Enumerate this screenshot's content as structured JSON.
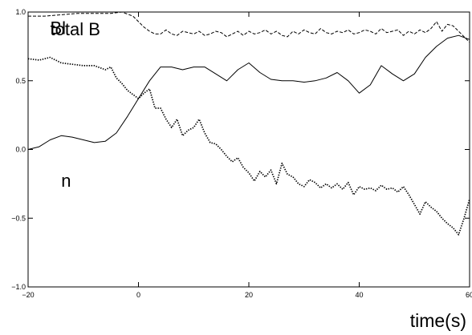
{
  "chart_data": {
    "type": "line",
    "xlabel": "time(s)",
    "ylabel": "",
    "xlim": [
      -20,
      60
    ],
    "ylim": [
      -1.0,
      1.0
    ],
    "x_ticks": [
      -20,
      0,
      20,
      40,
      60
    ],
    "y_ticks": [
      -1.0,
      -0.5,
      0.0,
      0.5,
      1.0
    ],
    "x_tick_labels": [
      "−20",
      "0",
      "20",
      "40",
      "60"
    ],
    "y_tick_labels": [
      "−1.0",
      "−0.5",
      "0.0",
      "0.5",
      "1.0"
    ],
    "grid": false,
    "series": [
      {
        "name": "total B",
        "style": "dashed",
        "color": "#000000",
        "x": [
          -20,
          -17,
          -14,
          -11,
          -9,
          -7,
          -5,
          -3,
          -1,
          0,
          1,
          2,
          3,
          4,
          5,
          6,
          7,
          8,
          9,
          10,
          11,
          12,
          13,
          14,
          15,
          16,
          17,
          18,
          19,
          20,
          21,
          22,
          23,
          24,
          25,
          26,
          27,
          28,
          29,
          30,
          31,
          32,
          33,
          34,
          35,
          36,
          37,
          38,
          39,
          40,
          41,
          42,
          43,
          44,
          45,
          46,
          47,
          48,
          49,
          50,
          51,
          52,
          53,
          54,
          55,
          56,
          57,
          58,
          59,
          60
        ],
        "values": [
          0.97,
          0.97,
          0.98,
          0.99,
          0.99,
          0.99,
          0.99,
          1.0,
          0.97,
          0.93,
          0.89,
          0.86,
          0.84,
          0.84,
          0.87,
          0.84,
          0.83,
          0.86,
          0.85,
          0.84,
          0.86,
          0.83,
          0.84,
          0.86,
          0.85,
          0.82,
          0.84,
          0.86,
          0.83,
          0.86,
          0.84,
          0.85,
          0.87,
          0.84,
          0.86,
          0.83,
          0.82,
          0.86,
          0.84,
          0.87,
          0.85,
          0.84,
          0.88,
          0.85,
          0.84,
          0.86,
          0.85,
          0.87,
          0.84,
          0.85,
          0.87,
          0.86,
          0.84,
          0.88,
          0.85,
          0.86,
          0.87,
          0.83,
          0.86,
          0.84,
          0.87,
          0.85,
          0.88,
          0.93,
          0.86,
          0.91,
          0.9,
          0.86,
          0.82,
          0.78
        ]
      },
      {
        "name": "Bl",
        "style": "solid",
        "color": "#000000",
        "x": [
          -20,
          -18,
          -16,
          -14,
          -12,
          -10,
          -8,
          -6,
          -4,
          -2,
          0,
          2,
          4,
          6,
          8,
          10,
          12,
          14,
          16,
          18,
          20,
          22,
          24,
          26,
          28,
          30,
          32,
          34,
          36,
          38,
          40,
          42,
          44,
          46,
          48,
          50,
          52,
          54,
          56,
          58,
          60
        ],
        "values": [
          0.0,
          0.02,
          0.07,
          0.1,
          0.09,
          0.07,
          0.05,
          0.06,
          0.12,
          0.24,
          0.37,
          0.5,
          0.6,
          0.6,
          0.58,
          0.6,
          0.6,
          0.55,
          0.5,
          0.58,
          0.63,
          0.56,
          0.51,
          0.5,
          0.5,
          0.49,
          0.5,
          0.52,
          0.56,
          0.5,
          0.41,
          0.47,
          0.61,
          0.55,
          0.5,
          0.55,
          0.67,
          0.75,
          0.81,
          0.83,
          0.8
        ]
      },
      {
        "name": "n",
        "style": "dotted",
        "color": "#000000",
        "x": [
          -20,
          -18,
          -16,
          -14,
          -12,
          -10,
          -8,
          -6,
          -5,
          -4,
          -3,
          -2,
          -1,
          0,
          1,
          2,
          3,
          4,
          5,
          6,
          7,
          8,
          9,
          10,
          11,
          12,
          13,
          14,
          15,
          16,
          17,
          18,
          19,
          20,
          21,
          22,
          23,
          24,
          25,
          26,
          27,
          28,
          29,
          30,
          31,
          32,
          33,
          34,
          35,
          36,
          37,
          38,
          39,
          40,
          41,
          42,
          43,
          44,
          45,
          46,
          47,
          48,
          49,
          50,
          51,
          52,
          53,
          54,
          55,
          56,
          57,
          58,
          59,
          60
        ],
        "values": [
          0.66,
          0.65,
          0.67,
          0.63,
          0.62,
          0.61,
          0.61,
          0.58,
          0.6,
          0.52,
          0.48,
          0.43,
          0.4,
          0.37,
          0.41,
          0.44,
          0.3,
          0.3,
          0.22,
          0.16,
          0.22,
          0.1,
          0.14,
          0.16,
          0.22,
          0.12,
          0.05,
          0.04,
          0.0,
          -0.05,
          -0.09,
          -0.06,
          -0.13,
          -0.17,
          -0.23,
          -0.16,
          -0.2,
          -0.15,
          -0.25,
          -0.1,
          -0.18,
          -0.2,
          -0.25,
          -0.27,
          -0.22,
          -0.24,
          -0.28,
          -0.25,
          -0.28,
          -0.25,
          -0.29,
          -0.24,
          -0.33,
          -0.27,
          -0.29,
          -0.28,
          -0.3,
          -0.26,
          -0.29,
          -0.28,
          -0.31,
          -0.27,
          -0.33,
          -0.4,
          -0.47,
          -0.38,
          -0.42,
          -0.45,
          -0.5,
          -0.54,
          -0.57,
          -0.62,
          -0.5,
          -0.36
        ]
      }
    ],
    "annotations": [
      {
        "text": "total B",
        "x": -16,
        "y": 0.83
      },
      {
        "text": "Bl",
        "x": -16,
        "y": 0.84
      },
      {
        "text": "n",
        "x": -14,
        "y": -0.27
      }
    ]
  }
}
